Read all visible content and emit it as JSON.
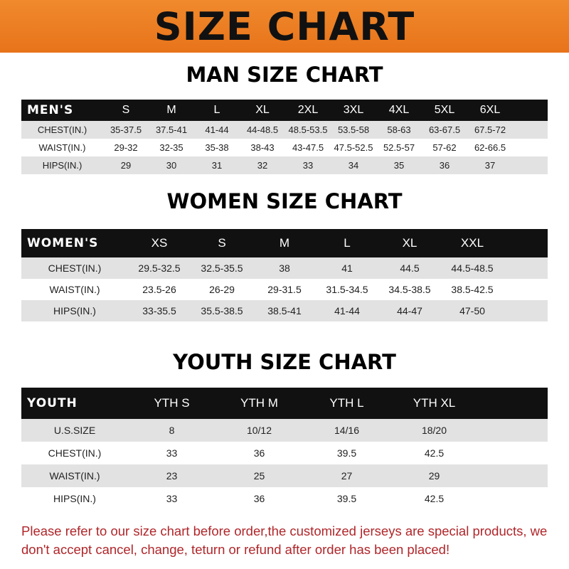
{
  "banner": "SIZE CHART",
  "men": {
    "title": "MAN SIZE CHART",
    "header": [
      "MEN'S",
      "S",
      "M",
      "L",
      "XL",
      "2XL",
      "3XL",
      "4XL",
      "5XL",
      "6XL"
    ],
    "rows": [
      [
        "CHEST(IN.)",
        "35-37.5",
        "37.5-41",
        "41-44",
        "44-48.5",
        "48.5-53.5",
        "53.5-58",
        "58-63",
        "63-67.5",
        "67.5-72"
      ],
      [
        "WAIST(IN.)",
        "29-32",
        "32-35",
        "35-38",
        "38-43",
        "43-47.5",
        "47.5-52.5",
        "52.5-57",
        "57-62",
        "62-66.5"
      ],
      [
        "HIPS(IN.)",
        "29",
        "30",
        "31",
        "32",
        "33",
        "34",
        "35",
        "36",
        "37"
      ]
    ]
  },
  "women": {
    "title": "WOMEN SIZE CHART",
    "header": [
      "WOMEN'S",
      "XS",
      "S",
      "M",
      "L",
      "XL",
      "XXL"
    ],
    "rows": [
      [
        "CHEST(IN.)",
        "29.5-32.5",
        "32.5-35.5",
        "38",
        "41",
        "44.5",
        "44.5-48.5"
      ],
      [
        "WAIST(IN.)",
        "23.5-26",
        "26-29",
        "29-31.5",
        "31.5-34.5",
        "34.5-38.5",
        "38.5-42.5"
      ],
      [
        "HIPS(IN.)",
        "33-35.5",
        "35.5-38.5",
        "38.5-41",
        "41-44",
        "44-47",
        "47-50"
      ]
    ]
  },
  "youth": {
    "title": "YOUTH SIZE CHART",
    "header": [
      "YOUTH",
      "YTH S",
      "YTH M",
      "YTH L",
      "YTH XL"
    ],
    "rows": [
      [
        "U.S.SIZE",
        "8",
        "10/12",
        "14/16",
        "18/20"
      ],
      [
        "CHEST(IN.)",
        "33",
        "36",
        "39.5",
        "42.5"
      ],
      [
        "WAIST(IN.)",
        "23",
        "25",
        "27",
        "29"
      ],
      [
        "HIPS(IN.)",
        "33",
        "36",
        "39.5",
        "42.5"
      ]
    ]
  },
  "note": "Please refer to our size chart before order,the customized jerseys are special products, we don't accept cancel, change, teturn or refund after order has been placed!"
}
